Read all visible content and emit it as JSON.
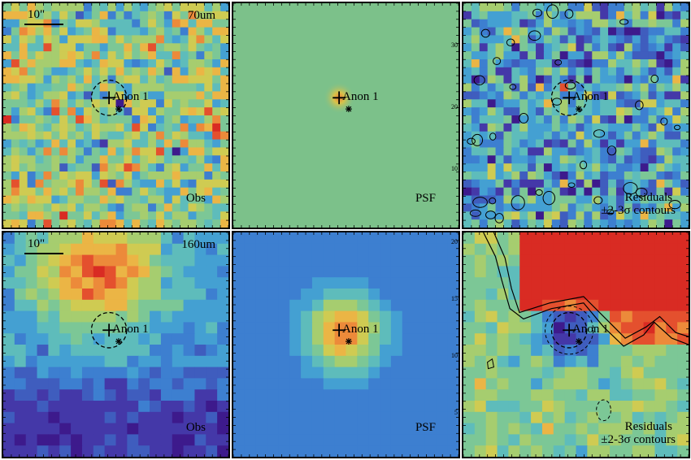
{
  "panels": [
    {
      "id": "p70-obs",
      "row": 0,
      "col": 0,
      "kind": "obs",
      "band_label": "70um",
      "scale_label": "10\"",
      "corner_label": "Obs",
      "source_label": "Anon 1"
    },
    {
      "id": "p70-psf",
      "row": 0,
      "col": 1,
      "kind": "psf",
      "corner_label": "PSF",
      "source_label": "Anon 1",
      "axis_ticks": [
        "30",
        "20",
        "10"
      ]
    },
    {
      "id": "p70-res",
      "row": 0,
      "col": 2,
      "kind": "res",
      "corner_label": "Residuals",
      "corner_label2": "±2-3σ contours",
      "source_label": "Anon 1"
    },
    {
      "id": "p160-obs",
      "row": 1,
      "col": 0,
      "kind": "obs160",
      "band_label": "160um",
      "scale_label": "10\"",
      "corner_label": "Obs",
      "source_label": "Anon 1"
    },
    {
      "id": "p160-psf",
      "row": 1,
      "col": 1,
      "kind": "psf160",
      "corner_label": "PSF",
      "source_label": "Anon 1",
      "axis_ticks": [
        "20",
        "15",
        "10",
        "5"
      ]
    },
    {
      "id": "p160-res",
      "row": 1,
      "col": 2,
      "kind": "res160",
      "corner_label": "Residuals",
      "corner_label2": "±2-3σ contours",
      "source_label": "Anon 1"
    }
  ],
  "colors": {
    "palette": [
      "#3d1a8c",
      "#4438a8",
      "#3f5dbe",
      "#3d7fd0",
      "#44a0d2",
      "#5ebcbb",
      "#7cc796",
      "#a6cd6f",
      "#cfcb52",
      "#ebb545",
      "#ec8a3a",
      "#e4502e",
      "#d92b23"
    ],
    "psf70_bg": "#7cc18a"
  }
}
